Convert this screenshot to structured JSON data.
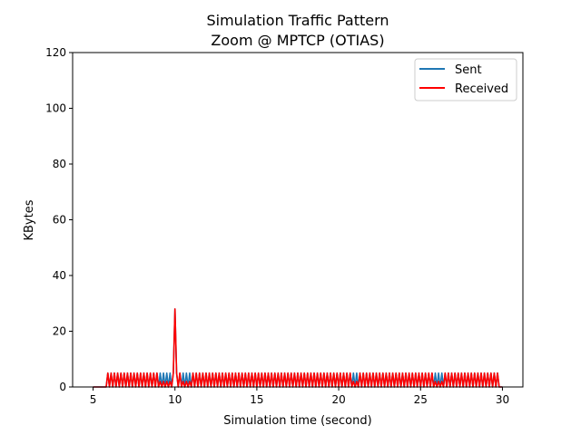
{
  "chart_data": {
    "type": "line",
    "title": [
      "Simulation Traffic Pattern",
      "Zoom @ MPTCP (OTIAS)"
    ],
    "xlabel": "Simulation time (second)",
    "ylabel": "KBytes",
    "xlim": [
      3.75,
      31.25
    ],
    "ylim": [
      0,
      120
    ],
    "xticks": [
      5,
      10,
      15,
      20,
      25,
      30
    ],
    "yticks": [
      0,
      20,
      40,
      60,
      80,
      100,
      120
    ],
    "grid": false,
    "legend": {
      "placement": "top-right"
    },
    "pattern": {
      "start": 5.0,
      "end": 30.0,
      "step": 0.1,
      "burst_start": 5.9,
      "burst_end": 29.8,
      "peak_value": 5,
      "base_value": 0,
      "spike_x": 10.0,
      "spike_value": 28
    },
    "series": [
      {
        "name": "Sent",
        "color": "#1f77b4"
      },
      {
        "name": "Received",
        "color": "#ff0000"
      }
    ]
  }
}
